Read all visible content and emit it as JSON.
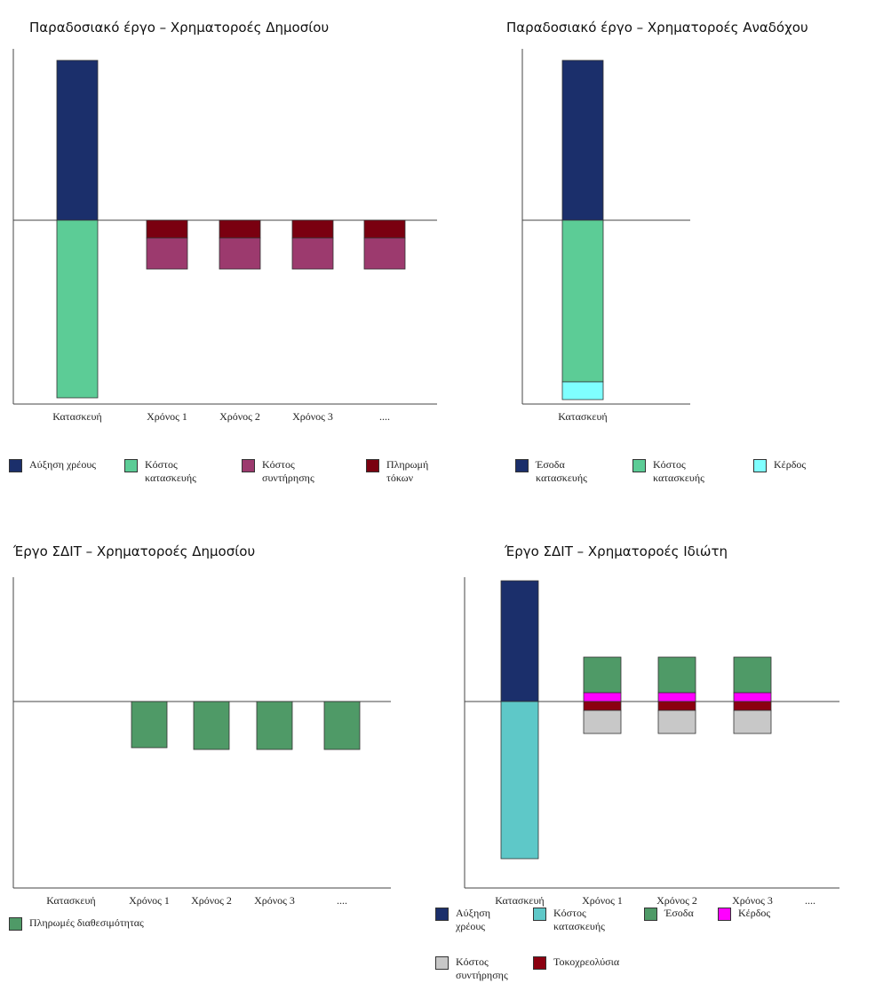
{
  "chart_data": [
    {
      "type": "bar",
      "title": "Παραδοσιακό έργο – Χρηματοροές Δημοσίου",
      "categories": [
        "Κατασκευή",
        "Χρόνος 1",
        "Χρόνος 2",
        "Χρόνος 3",
        "...."
      ],
      "ylim": [
        -20.7,
        19.3
      ],
      "series": [
        {
          "name": "Αύξηση χρέους",
          "color": "#1b2f6b",
          "values": [
            18,
            null,
            null,
            null,
            null
          ]
        },
        {
          "name": "Κόστος κατασκευής",
          "color": "#5ccc96",
          "values": [
            -20,
            null,
            null,
            null,
            null
          ]
        },
        {
          "name": "Πληρωμή τόκων",
          "color": "#7a0010",
          "values": [
            null,
            -2,
            -2,
            -2,
            -2
          ]
        },
        {
          "name": "Κόστος συντήρησης",
          "color": "#9c3a6e",
          "values": [
            null,
            -3.5,
            -3.5,
            -3.5,
            -3.5
          ]
        }
      ]
    },
    {
      "type": "bar",
      "title": "Παραδοσιακό έργο – Χρηματοροές Αναδόχου",
      "categories": [
        "Κατασκευή"
      ],
      "ylim": [
        -20.7,
        19.3
      ],
      "series": [
        {
          "name": "Έσοδα κατασκευής",
          "color": "#1b2f6b",
          "values": [
            18
          ]
        },
        {
          "name": "Κόστος κατασκευής",
          "color": "#5ccc96",
          "values": [
            -18.2
          ]
        },
        {
          "name": "Κέρδος",
          "color": "#7fffff",
          "values": [
            -2
          ]
        }
      ]
    },
    {
      "type": "bar",
      "title": "Έργο ΣΔΙΤ – Χρηματοροές Δημοσίου",
      "categories": [
        "Κατασκευή",
        "Χρόνος 1",
        "Χρόνος 2",
        "Χρόνος 3",
        "...."
      ],
      "ylim": [
        -21,
        14
      ],
      "series": [
        {
          "name": "Πληρωμές διαθεσιμότητας",
          "color": "#4f9a67",
          "values": [
            null,
            -5.2,
            -5.4,
            -5.4,
            -5.4
          ]
        }
      ]
    },
    {
      "type": "bar",
      "title": "Έργο ΣΔΙΤ – Χρηματοροές Ιδιώτη",
      "categories": [
        "Κατασκευή",
        "Χρόνος 1",
        "Χρόνος 2",
        "Χρόνος 3",
        "...."
      ],
      "ylim": [
        -21,
        14
      ],
      "series": [
        {
          "name": "Αύξηση χρέους",
          "color": "#1b2f6b",
          "values": [
            13.6,
            null,
            null,
            null,
            null
          ]
        },
        {
          "name": "Κόστος κατασκευής",
          "color": "#5ec8c8",
          "values": [
            -17.7,
            null,
            null,
            null,
            null
          ]
        },
        {
          "name": "Κέρδος",
          "color": "#ff00ff",
          "values": [
            null,
            1,
            1,
            1,
            null
          ]
        },
        {
          "name": "Έσοδα",
          "color": "#4f9a67",
          "values": [
            null,
            4,
            4,
            4,
            null
          ]
        },
        {
          "name": "Τοκοχρεολύσια",
          "color": "#8b0010",
          "values": [
            null,
            -1,
            -1,
            -1,
            null
          ]
        },
        {
          "name": "Κόστος συντήρησης",
          "color": "#c8c8c8",
          "values": [
            null,
            -2.6,
            -2.6,
            -2.6,
            null
          ]
        }
      ]
    }
  ]
}
